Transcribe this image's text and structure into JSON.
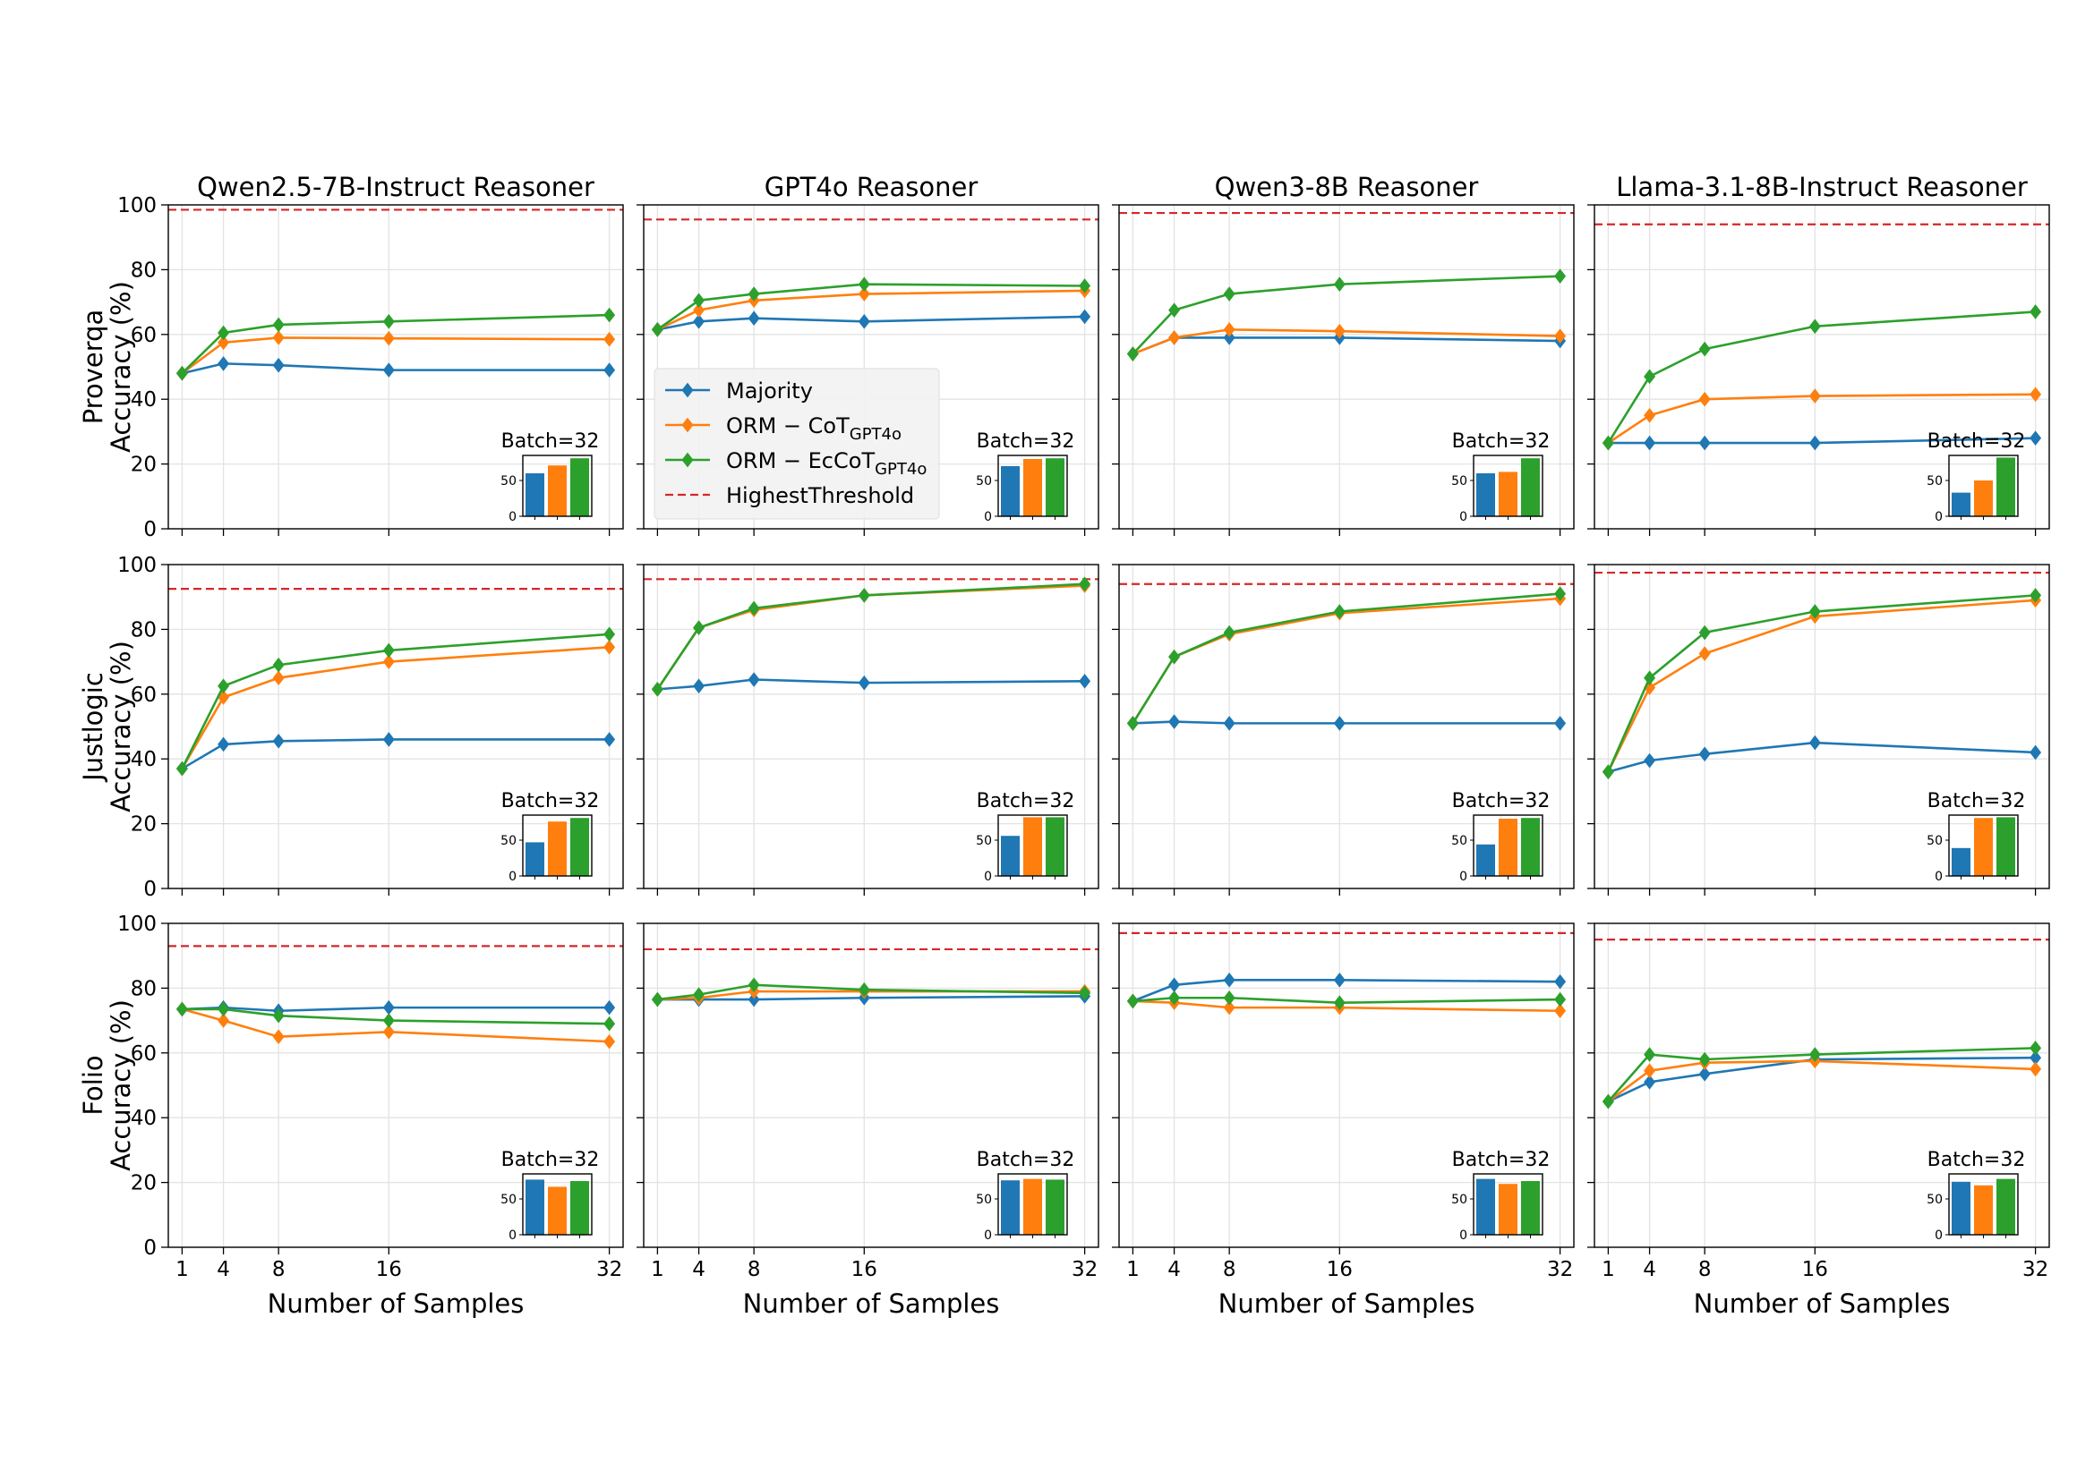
{
  "chart_data": {
    "type": "line",
    "layout": {
      "rows": 3,
      "cols": 4
    },
    "x": [
      1,
      4,
      8,
      16,
      32
    ],
    "xticks": [
      1,
      4,
      8,
      16,
      32
    ],
    "xlim": [
      0,
      33
    ],
    "ylim": [
      0,
      100
    ],
    "yticks": [
      0,
      20,
      40,
      60,
      80,
      100
    ],
    "xlabel": "Number of Samples",
    "grid": true,
    "col_titles": [
      "Qwen2.5-7B-Instruct Reasoner",
      "GPT4o Reasoner",
      "Qwen3-8B Reasoner",
      "Llama-3.1-8B-Instruct Reasoner"
    ],
    "row_ylabels": [
      [
        "Proverqa",
        "Accuracy (%)"
      ],
      [
        "Justlogic",
        "Accuracy (%)"
      ],
      [
        "Folio",
        "Accuracy (%)"
      ]
    ],
    "series_styles": [
      {
        "key": "majority",
        "color": "#1f77b4",
        "marker": "diamond"
      },
      {
        "key": "orm_cot",
        "color": "#ff7f0e",
        "marker": "diamond"
      },
      {
        "key": "orm_eccot",
        "color": "#2ca02c",
        "marker": "diamond"
      }
    ],
    "threshold_style": {
      "color": "#d62728",
      "dash": "dashed"
    },
    "legend": {
      "placement": "inside row 1, column 2",
      "entries": [
        {
          "label": "Majority",
          "sub": "",
          "color": "#1f77b4",
          "type": "line-marker"
        },
        {
          "label": "ORM − CoT",
          "sub": "GPT4o",
          "color": "#ff7f0e",
          "type": "line-marker"
        },
        {
          "label": "ORM − EcCoT",
          "sub": "GPT4o",
          "color": "#2ca02c",
          "type": "line-marker"
        },
        {
          "label": "HighestThreshold",
          "sub": "",
          "color": "#d62728",
          "type": "dashed"
        }
      ]
    },
    "inset": {
      "title": "Batch=32",
      "yticks": [
        0,
        50
      ],
      "ylim": [
        0,
        85
      ]
    },
    "panels": [
      {
        "row": 0,
        "col": 0,
        "threshold": 98.5,
        "series": {
          "majority": [
            48,
            51,
            50.5,
            49,
            49
          ],
          "orm_cot": [
            48,
            57.5,
            59,
            58.8,
            58.5
          ],
          "orm_eccot": [
            48,
            60.5,
            63,
            64,
            66
          ]
        },
        "inset_values": [
          60,
          71,
          81
        ]
      },
      {
        "row": 0,
        "col": 1,
        "threshold": 95.5,
        "series": {
          "majority": [
            61.5,
            64,
            65,
            64,
            65.5
          ],
          "orm_cot": [
            61.5,
            67.5,
            70.5,
            72.5,
            73.5
          ],
          "orm_eccot": [
            61.5,
            70.5,
            72.5,
            75.5,
            75
          ]
        },
        "inset_values": [
          70,
          80,
          81
        ]
      },
      {
        "row": 0,
        "col": 2,
        "threshold": 97.5,
        "series": {
          "majority": [
            54,
            59,
            59,
            59,
            58
          ],
          "orm_cot": [
            54,
            59,
            61.5,
            61,
            59.5
          ],
          "orm_eccot": [
            54,
            67.5,
            72.5,
            75.5,
            78
          ]
        },
        "inset_values": [
          60,
          62,
          81
        ]
      },
      {
        "row": 0,
        "col": 3,
        "threshold": 94,
        "series": {
          "majority": [
            26.5,
            26.5,
            26.5,
            26.5,
            28
          ],
          "orm_cot": [
            26.5,
            35,
            40,
            41,
            41.5
          ],
          "orm_eccot": [
            26.5,
            47,
            55.5,
            62.5,
            67
          ]
        },
        "inset_values": [
          33,
          50,
          82
        ]
      },
      {
        "row": 1,
        "col": 0,
        "threshold": 92.5,
        "series": {
          "majority": [
            37,
            44.5,
            45.5,
            46,
            46
          ],
          "orm_cot": [
            37,
            59,
            65,
            70,
            74.5
          ],
          "orm_eccot": [
            37,
            62.5,
            69,
            73.5,
            78.5
          ]
        },
        "inset_values": [
          47,
          76,
          81
        ]
      },
      {
        "row": 1,
        "col": 1,
        "threshold": 95.5,
        "series": {
          "majority": [
            61.5,
            62.5,
            64.5,
            63.5,
            64
          ],
          "orm_cot": [
            61.5,
            80.5,
            86,
            90.5,
            93.5
          ],
          "orm_eccot": [
            61.5,
            80.5,
            86.5,
            90.5,
            94
          ]
        },
        "inset_values": [
          56,
          82,
          82
        ]
      },
      {
        "row": 1,
        "col": 2,
        "threshold": 94,
        "series": {
          "majority": [
            51,
            51.5,
            51,
            51,
            51
          ],
          "orm_cot": [
            51,
            71.5,
            78.5,
            85,
            89.5
          ],
          "orm_eccot": [
            51,
            71.5,
            79,
            85.5,
            91
          ]
        },
        "inset_values": [
          44,
          80,
          81
        ]
      },
      {
        "row": 1,
        "col": 3,
        "threshold": 97.5,
        "series": {
          "majority": [
            36,
            39.5,
            41.5,
            45,
            42
          ],
          "orm_cot": [
            36,
            62,
            72.5,
            84,
            89
          ],
          "orm_eccot": [
            36,
            65,
            79,
            85.5,
            90.5
          ]
        },
        "inset_values": [
          39,
          81,
          82
        ]
      },
      {
        "row": 2,
        "col": 0,
        "threshold": 93,
        "series": {
          "majority": [
            73.5,
            74,
            73,
            74,
            74
          ],
          "orm_cot": [
            73.5,
            70,
            65,
            66.5,
            63.5
          ],
          "orm_eccot": [
            73.5,
            73.5,
            71.5,
            70,
            69
          ]
        },
        "inset_values": [
          77,
          67,
          75
        ]
      },
      {
        "row": 2,
        "col": 1,
        "threshold": 92,
        "series": {
          "majority": [
            76.5,
            76.5,
            76.5,
            77,
            77.5
          ],
          "orm_cot": [
            76.5,
            77,
            79,
            79,
            79
          ],
          "orm_eccot": [
            76.5,
            78,
            81,
            79.5,
            78.5
          ]
        },
        "inset_values": [
          76,
          78,
          77
        ]
      },
      {
        "row": 2,
        "col": 2,
        "threshold": 97,
        "series": {
          "majority": [
            76,
            81,
            82.5,
            82.5,
            82
          ],
          "orm_cot": [
            76,
            75.5,
            74,
            74,
            73
          ],
          "orm_eccot": [
            76,
            77,
            77,
            75.5,
            76.5
          ]
        },
        "inset_values": [
          78,
          71,
          75
        ]
      },
      {
        "row": 2,
        "col": 3,
        "threshold": 95,
        "series": {
          "majority": [
            45,
            51,
            53.5,
            58,
            58.5
          ],
          "orm_cot": [
            45,
            54.5,
            57,
            57.5,
            55
          ],
          "orm_eccot": [
            45,
            59.5,
            58,
            59.5,
            61.5
          ]
        },
        "inset_values": [
          74,
          69,
          78
        ]
      }
    ]
  }
}
